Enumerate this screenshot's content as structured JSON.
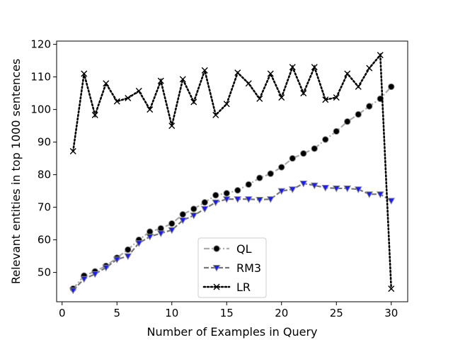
{
  "chart_data": {
    "type": "line",
    "xlabel": "Number of Examples in Query",
    "ylabel": "Relevant entities in top 1000 sentences",
    "xlim": [
      -0.5,
      31.5
    ],
    "ylim": [
      41,
      121
    ],
    "xticks": [
      0,
      5,
      10,
      15,
      20,
      25,
      30
    ],
    "yticks": [
      50,
      60,
      70,
      80,
      90,
      100,
      110,
      120
    ],
    "grid": false,
    "legend_position": "lower-center",
    "x": [
      1,
      2,
      3,
      4,
      5,
      6,
      7,
      8,
      9,
      10,
      11,
      12,
      13,
      14,
      15,
      16,
      17,
      18,
      19,
      20,
      21,
      22,
      23,
      24,
      25,
      26,
      27,
      28,
      29,
      30
    ],
    "series": [
      {
        "name": "QL",
        "line_color": "#aaaaaa",
        "marker_face": "#000000",
        "marker": "circle",
        "linestyle": "dash-dot",
        "values": [
          45,
          49,
          50.3,
          52,
          54.5,
          57,
          60,
          62.5,
          63.5,
          65,
          67.8,
          69.5,
          71.5,
          73.7,
          74.3,
          75.2,
          77,
          79,
          80.3,
          82.3,
          85,
          86.5,
          88,
          90.8,
          93.3,
          96.3,
          98.5,
          101,
          103.3,
          107
        ]
      },
      {
        "name": "RM3",
        "line_color": "#777777",
        "marker_face": "#1a1aff",
        "marker": "triangle-down",
        "linestyle": "dashed",
        "values": [
          44.5,
          48,
          49.5,
          51.5,
          54,
          55,
          59,
          61,
          62,
          63,
          66,
          67.5,
          69.5,
          71.5,
          72.5,
          72.5,
          72.5,
          72.3,
          72.5,
          75,
          75.5,
          77.3,
          76.7,
          76,
          75.8,
          75.8,
          75.5,
          74,
          74,
          72
        ]
      },
      {
        "name": "LR",
        "line_color": "#000000",
        "marker_face": "#000000",
        "marker": "x",
        "linestyle": "dotted",
        "values": [
          87.2,
          111,
          98.3,
          108,
          102.5,
          103.5,
          105.7,
          100,
          108.8,
          95,
          109.3,
          102.3,
          112,
          98.3,
          101.7,
          111.3,
          108,
          103.3,
          111,
          103.7,
          113,
          105,
          113,
          103,
          103.7,
          111,
          107,
          112.7,
          116.7,
          45
        ]
      }
    ]
  }
}
